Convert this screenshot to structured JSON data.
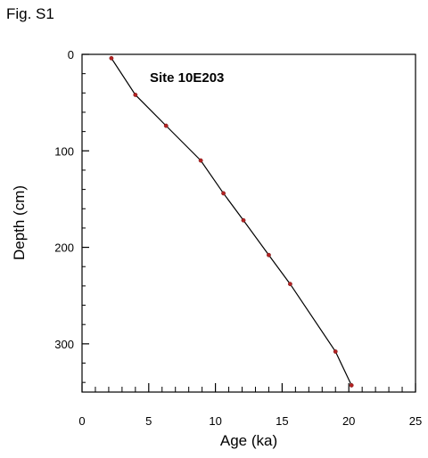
{
  "figure_label": "Fig. S1",
  "colors": {
    "line": "#000000",
    "point": "#b22222",
    "axis": "#000000"
  },
  "chart_data": {
    "type": "line",
    "title": "",
    "annotation": "Site 10E203",
    "xlabel": "Age (ka)",
    "ylabel": "Depth (cm)",
    "xlim": [
      0,
      25
    ],
    "ylim": [
      0,
      350
    ],
    "y_inverted": true,
    "x_ticks": [
      0,
      5,
      10,
      15,
      20,
      25
    ],
    "x_tick_labels": [
      "0",
      "5",
      "10",
      "15",
      "20",
      "25"
    ],
    "x_minor_step": 1,
    "y_ticks": [
      0,
      100,
      200,
      300
    ],
    "y_tick_labels": [
      "0",
      "100",
      "200",
      "300"
    ],
    "y_minor_step": 20,
    "grid": false,
    "series": [
      {
        "x": [
          2.2,
          4.0,
          6.3,
          8.9,
          10.6,
          12.1,
          14.0,
          15.6,
          19.0,
          20.2
        ],
        "y": [
          4,
          42,
          74,
          110,
          144,
          172,
          208,
          238,
          308,
          343
        ]
      }
    ]
  }
}
